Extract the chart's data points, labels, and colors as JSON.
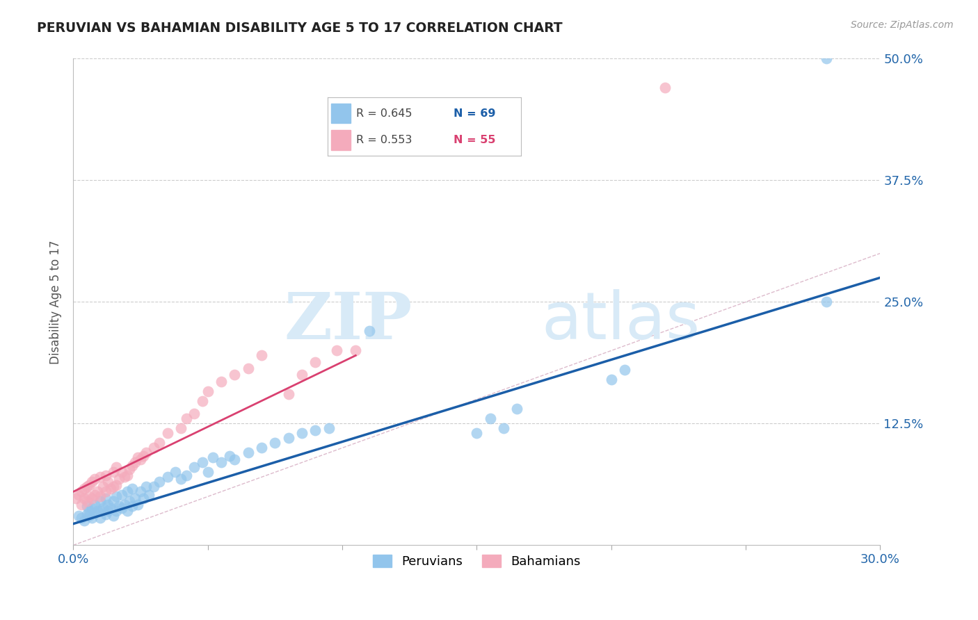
{
  "title": "PERUVIAN VS BAHAMIAN DISABILITY AGE 5 TO 17 CORRELATION CHART",
  "source": "Source: ZipAtlas.com",
  "ylabel": "Disability Age 5 to 17",
  "xlim": [
    0.0,
    0.3
  ],
  "ylim": [
    0.0,
    0.5
  ],
  "xticks": [
    0.0,
    0.05,
    0.1,
    0.15,
    0.2,
    0.25,
    0.3
  ],
  "xticklabels": [
    "0.0%",
    "",
    "",
    "",
    "",
    "",
    "30.0%"
  ],
  "yticks": [
    0.0,
    0.125,
    0.25,
    0.375,
    0.5
  ],
  "yticklabels": [
    "",
    "12.5%",
    "25.0%",
    "37.5%",
    "50.0%"
  ],
  "legend_r1": "R = 0.645",
  "legend_n1": "N = 69",
  "legend_r2": "R = 0.553",
  "legend_n2": "N = 55",
  "blue_color": "#92C5EC",
  "pink_color": "#F4ABBC",
  "blue_line_color": "#1B5EA8",
  "pink_line_color": "#D94070",
  "watermark_color": "#D8EAF7",
  "blue_line_x": [
    0.0,
    0.3
  ],
  "blue_line_y": [
    0.022,
    0.275
  ],
  "pink_line_x": [
    0.0,
    0.105
  ],
  "pink_line_y": [
    0.055,
    0.195
  ],
  "blue_scatter_x": [
    0.002,
    0.003,
    0.004,
    0.005,
    0.005,
    0.006,
    0.006,
    0.007,
    0.007,
    0.008,
    0.008,
    0.009,
    0.01,
    0.01,
    0.01,
    0.011,
    0.012,
    0.012,
    0.013,
    0.013,
    0.014,
    0.015,
    0.015,
    0.016,
    0.016,
    0.017,
    0.018,
    0.018,
    0.019,
    0.02,
    0.02,
    0.021,
    0.022,
    0.022,
    0.023,
    0.024,
    0.025,
    0.026,
    0.027,
    0.028,
    0.03,
    0.032,
    0.035,
    0.038,
    0.04,
    0.042,
    0.045,
    0.048,
    0.05,
    0.052,
    0.055,
    0.058,
    0.06,
    0.065,
    0.07,
    0.075,
    0.08,
    0.085,
    0.09,
    0.095,
    0.11,
    0.15,
    0.155,
    0.16,
    0.165,
    0.2,
    0.205,
    0.28,
    0.28
  ],
  "blue_scatter_y": [
    0.03,
    0.028,
    0.025,
    0.032,
    0.04,
    0.03,
    0.035,
    0.028,
    0.038,
    0.033,
    0.042,
    0.035,
    0.028,
    0.035,
    0.045,
    0.038,
    0.032,
    0.048,
    0.035,
    0.042,
    0.038,
    0.03,
    0.045,
    0.035,
    0.05,
    0.04,
    0.038,
    0.052,
    0.042,
    0.035,
    0.055,
    0.045,
    0.04,
    0.058,
    0.048,
    0.042,
    0.055,
    0.048,
    0.06,
    0.052,
    0.06,
    0.065,
    0.07,
    0.075,
    0.068,
    0.072,
    0.08,
    0.085,
    0.075,
    0.09,
    0.085,
    0.092,
    0.088,
    0.095,
    0.1,
    0.105,
    0.11,
    0.115,
    0.118,
    0.12,
    0.22,
    0.115,
    0.13,
    0.12,
    0.14,
    0.17,
    0.18,
    0.25,
    0.5
  ],
  "pink_scatter_x": [
    0.001,
    0.002,
    0.003,
    0.003,
    0.004,
    0.004,
    0.005,
    0.005,
    0.006,
    0.006,
    0.007,
    0.007,
    0.008,
    0.008,
    0.009,
    0.01,
    0.01,
    0.011,
    0.012,
    0.012,
    0.013,
    0.014,
    0.015,
    0.015,
    0.016,
    0.016,
    0.017,
    0.018,
    0.019,
    0.02,
    0.021,
    0.022,
    0.023,
    0.024,
    0.025,
    0.026,
    0.027,
    0.03,
    0.032,
    0.035,
    0.04,
    0.042,
    0.045,
    0.048,
    0.05,
    0.055,
    0.06,
    0.065,
    0.07,
    0.08,
    0.085,
    0.09,
    0.098,
    0.105,
    0.22
  ],
  "pink_scatter_y": [
    0.048,
    0.052,
    0.042,
    0.055,
    0.048,
    0.058,
    0.045,
    0.06,
    0.05,
    0.062,
    0.048,
    0.065,
    0.052,
    0.068,
    0.055,
    0.05,
    0.07,
    0.06,
    0.055,
    0.072,
    0.065,
    0.058,
    0.06,
    0.075,
    0.062,
    0.08,
    0.068,
    0.075,
    0.07,
    0.072,
    0.078,
    0.082,
    0.085,
    0.09,
    0.088,
    0.092,
    0.095,
    0.1,
    0.105,
    0.115,
    0.12,
    0.13,
    0.135,
    0.148,
    0.158,
    0.168,
    0.175,
    0.182,
    0.195,
    0.155,
    0.175,
    0.188,
    0.2,
    0.2,
    0.47
  ]
}
